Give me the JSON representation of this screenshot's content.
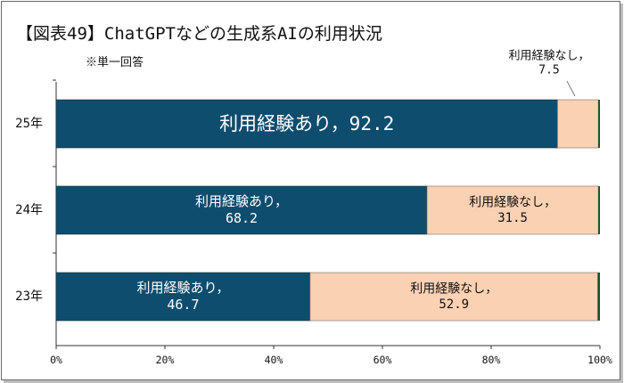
{
  "title": "【図表49】ChatGPTなどの生成系AIの利用状況",
  "note": "※単一回答",
  "colors": {
    "experienced": "#0f4d6e",
    "not_experienced": "#fbd1b3",
    "tail": "#1f4d2a"
  },
  "chart_data": {
    "type": "bar",
    "orientation": "horizontal",
    "stacked": true,
    "categories": [
      "25年",
      "24年",
      "23年"
    ],
    "series": [
      {
        "name": "利用経験あり",
        "values": [
          92.2,
          68.2,
          46.7
        ],
        "labels": [
          [
            "利用経験あり，92.2"
          ],
          [
            "利用経験あり，",
            "68.2"
          ],
          [
            "利用経験あり，",
            "46.7"
          ]
        ]
      },
      {
        "name": "利用経験なし",
        "values": [
          7.5,
          31.5,
          52.9
        ],
        "labels": [
          [
            "利用経験なし，",
            "7.5"
          ],
          [
            "利用経験なし，",
            "31.5"
          ],
          [
            "利用経験なし，",
            "52.9"
          ]
        ]
      }
    ],
    "xlim": [
      0,
      100
    ],
    "xticks": [
      "0%",
      "20%",
      "40%",
      "60%",
      "80%",
      "100%"
    ],
    "grid": false
  }
}
